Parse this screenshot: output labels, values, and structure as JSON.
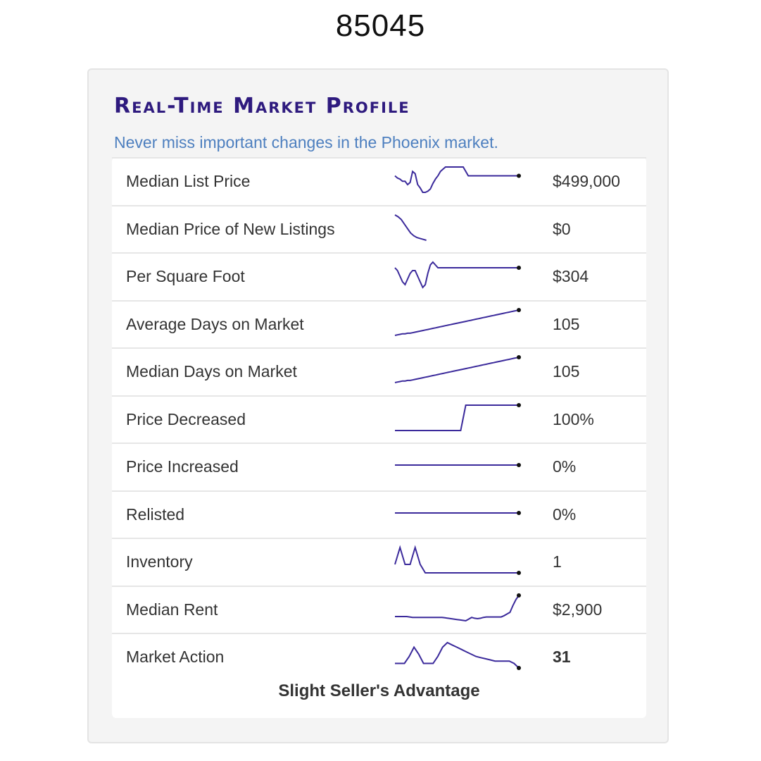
{
  "zip_code": "85045",
  "panel": {
    "heading": "Real-Time Market Profile",
    "subtitle": "Never miss important changes in the Phoenix market.",
    "line_color": "#3b2a9b",
    "heading_color": "#2e1a7e",
    "subtitle_color": "#4d7fbf",
    "rows": [
      {
        "label": "Median List Price",
        "value": "$499,000",
        "trend": [
          34,
          32,
          31,
          29,
          29,
          26,
          28,
          38,
          36,
          26,
          23,
          19,
          19,
          20,
          22,
          27,
          31,
          34,
          38,
          40,
          42,
          42,
          42,
          42,
          42,
          42,
          42,
          42,
          38,
          34,
          34,
          34,
          34,
          34,
          34,
          34,
          34,
          34,
          34,
          34,
          34,
          34,
          34,
          34,
          34,
          34,
          34,
          34,
          34,
          34
        ]
      },
      {
        "label": "Median Price of New Listings",
        "value": "$0",
        "trend": [
          60,
          58,
          55,
          50,
          45,
          40,
          37,
          35,
          34,
          33,
          32
        ]
      },
      {
        "label": "Per Square Foot",
        "value": "$304",
        "trend": [
          34,
          33,
          31,
          29,
          28,
          30,
          32,
          33,
          33,
          31,
          29,
          27,
          28,
          32,
          35,
          36,
          35,
          34,
          34,
          34,
          34,
          34,
          34,
          34,
          34,
          34,
          34,
          34,
          34,
          34,
          34,
          34,
          34,
          34,
          34,
          34,
          34,
          34,
          34,
          34,
          34,
          34,
          34,
          34,
          34,
          34,
          34,
          34,
          34,
          34
        ]
      },
      {
        "label": "Average Days on Market",
        "value": "105",
        "trend": [
          10,
          11,
          12,
          13,
          13,
          14,
          14,
          15,
          16,
          17,
          18,
          19,
          20,
          21,
          22,
          23,
          24,
          25,
          26,
          27,
          28,
          29,
          30,
          31,
          32,
          33,
          34,
          35,
          36,
          37,
          38,
          39,
          40,
          41,
          42,
          43,
          44,
          45,
          46,
          47,
          48,
          49,
          50,
          51,
          52,
          53,
          54,
          55,
          56,
          57
        ]
      },
      {
        "label": "Median Days on Market",
        "value": "105",
        "trend": [
          10,
          11,
          12,
          13,
          13,
          14,
          14,
          15,
          16,
          17,
          18,
          19,
          20,
          21,
          22,
          23,
          24,
          25,
          26,
          27,
          28,
          29,
          30,
          31,
          32,
          33,
          34,
          35,
          36,
          37,
          38,
          39,
          40,
          41,
          42,
          43,
          44,
          45,
          46,
          47,
          48,
          49,
          50,
          51,
          52,
          53,
          54,
          55,
          56,
          57
        ]
      },
      {
        "label": "Price Decreased",
        "value": "100%",
        "trend": [
          0,
          0,
          0,
          0,
          0,
          0,
          0,
          0,
          0,
          0,
          0,
          0,
          0,
          0,
          0,
          0,
          0,
          0,
          0,
          0,
          0,
          0,
          0,
          0,
          0,
          0,
          0,
          50,
          100,
          100,
          100,
          100,
          100,
          100,
          100,
          100,
          100,
          100,
          100,
          100,
          100,
          100,
          100,
          100,
          100,
          100,
          100,
          100,
          100,
          100
        ]
      },
      {
        "label": "Price Increased",
        "value": "0%",
        "trend": [
          0,
          0,
          0,
          0,
          0,
          0,
          0,
          0,
          0,
          0,
          0,
          0,
          0,
          0,
          0,
          0,
          0,
          0,
          0,
          0,
          0,
          0,
          0,
          0,
          0,
          0,
          0,
          0,
          0,
          0,
          0,
          0,
          0,
          0,
          0,
          0,
          0,
          0,
          0,
          0,
          0,
          0,
          0,
          0,
          0,
          0,
          0,
          0,
          0,
          0
        ]
      },
      {
        "label": "Relisted",
        "value": "0%",
        "trend": [
          0,
          0,
          0,
          0,
          0,
          0,
          0,
          0,
          0,
          0,
          0,
          0,
          0,
          0,
          0,
          0,
          0,
          0,
          0,
          0,
          0,
          0,
          0,
          0,
          0,
          0,
          0,
          0,
          0,
          0,
          0,
          0,
          0,
          0,
          0,
          0,
          0,
          0,
          0,
          0,
          0,
          0,
          0,
          0,
          0,
          0,
          0,
          0,
          0,
          0
        ]
      },
      {
        "label": "Inventory",
        "value": "1",
        "trend": [
          2,
          3,
          4,
          3,
          2,
          2,
          2,
          3,
          4,
          3,
          2,
          1.5,
          1,
          1,
          1,
          1,
          1,
          1,
          1,
          1,
          1,
          1,
          1,
          1,
          1,
          1,
          1,
          1,
          1,
          1,
          1,
          1,
          1,
          1,
          1,
          1,
          1,
          1,
          1,
          1,
          1,
          1,
          1,
          1,
          1,
          1,
          1,
          1,
          1,
          1
        ]
      },
      {
        "label": "Median Rent",
        "value": "$2,900",
        "trend": [
          2650,
          2650,
          2650,
          2650,
          2650,
          2645,
          2640,
          2640,
          2640,
          2640,
          2640,
          2640,
          2640,
          2640,
          2640,
          2640,
          2640,
          2635,
          2630,
          2625,
          2620,
          2615,
          2610,
          2605,
          2600,
          2620,
          2640,
          2630,
          2625,
          2630,
          2640,
          2645,
          2645,
          2645,
          2645,
          2645,
          2645,
          2660,
          2680,
          2700,
          2780,
          2850,
          2900
        ]
      },
      {
        "label": "Market Action",
        "value": "31",
        "value_bold": true,
        "trend": [
          33,
          33,
          33,
          36,
          40,
          37,
          33,
          33,
          33,
          36,
          40,
          42,
          41,
          40,
          39,
          38,
          37,
          36,
          35.5,
          35,
          34.5,
          34,
          34,
          34,
          34,
          33,
          31
        ]
      }
    ],
    "conclusion": "Slight Seller's Advantage"
  }
}
